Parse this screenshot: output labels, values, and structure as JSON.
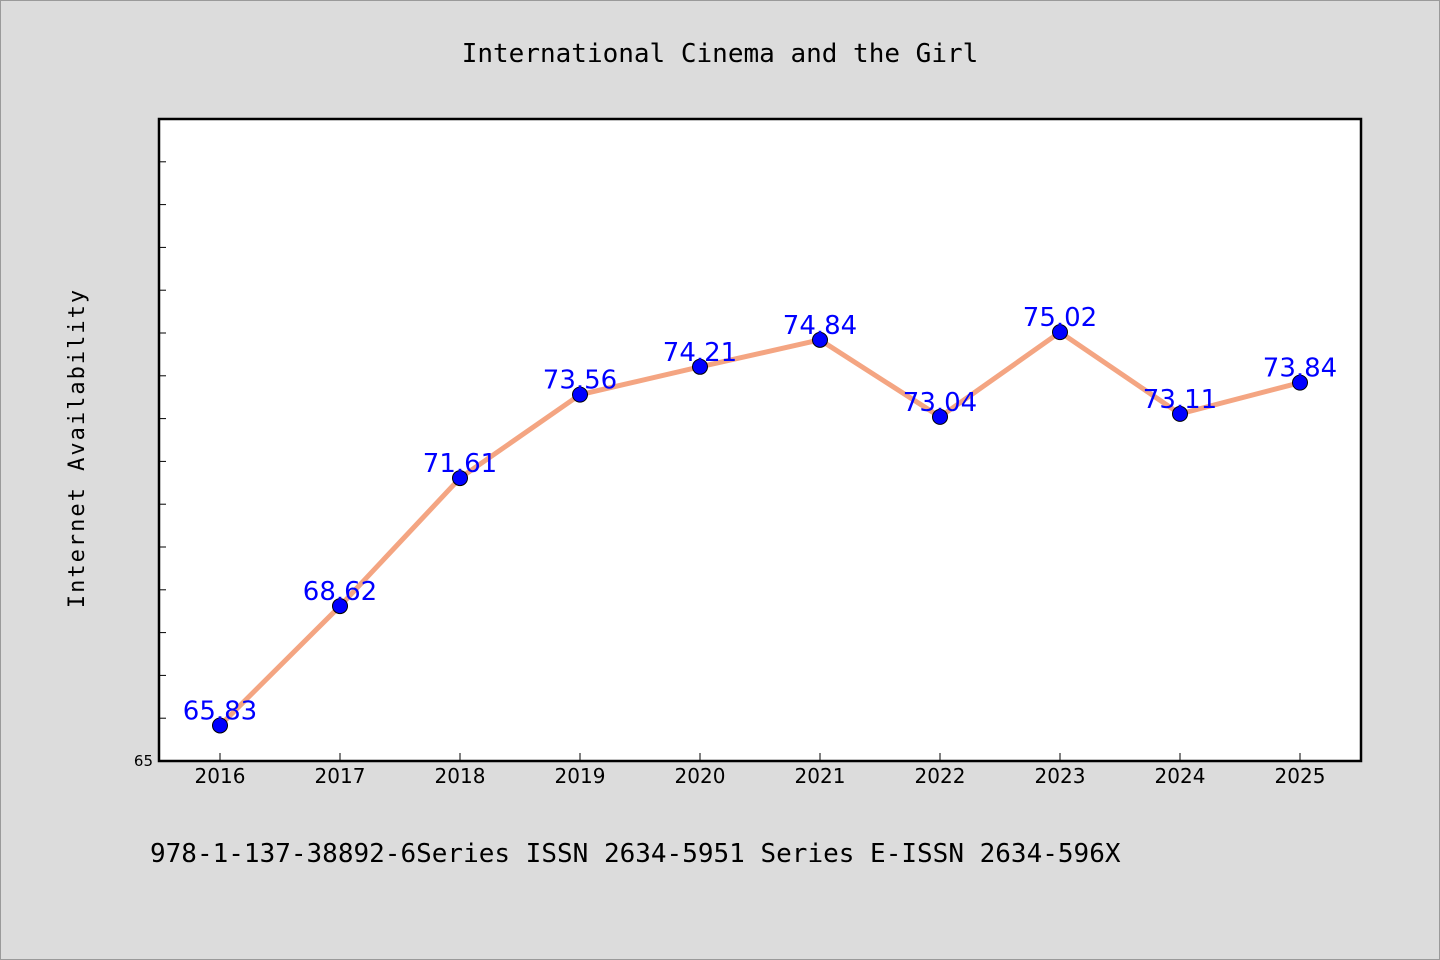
{
  "chart_data": {
    "type": "line",
    "title": "International Cinema and the Girl",
    "ylabel": "Internet Availability",
    "xlabel": "",
    "categories": [
      "2016",
      "2017",
      "2018",
      "2019",
      "2020",
      "2021",
      "2022",
      "2023",
      "2024",
      "2025"
    ],
    "series": [
      {
        "values": [
          65.83,
          68.62,
          71.61,
          73.56,
          74.21,
          74.84,
          73.04,
          75.02,
          73.11,
          73.84
        ],
        "line_color": "#f4a582",
        "marker_color": "#0000ff",
        "label_color": "#0000ff"
      }
    ],
    "ylim": [
      65,
      80
    ],
    "y_tick_labels": [
      "65"
    ],
    "grid": false,
    "legend": "none"
  },
  "footer": {
    "text": "978-1-137-38892-6Series ISSN 2634-5951 Series E-ISSN 2634-596X"
  }
}
